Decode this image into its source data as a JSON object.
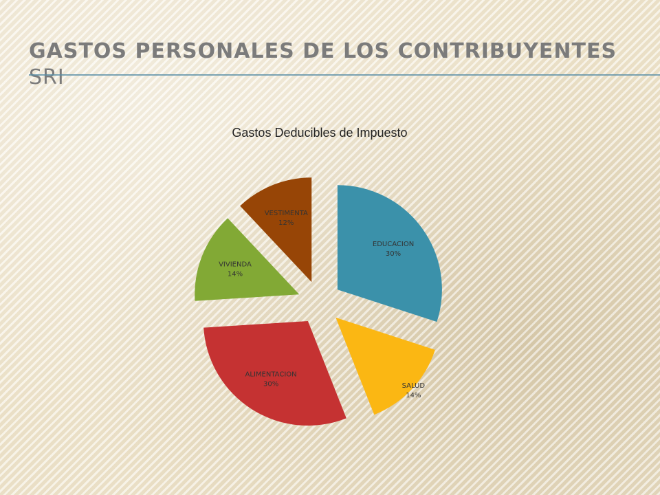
{
  "slide": {
    "title_line1": "GASTOS PERSONALES DE LOS CONTRIBUYENTES",
    "title_line2": "SRI"
  },
  "chart_data": {
    "type": "pie",
    "title": "Gastos Deducibles de Impuesto",
    "exploded": true,
    "slices": [
      {
        "label": "EDUCACION",
        "value": 30,
        "value_label": "30%",
        "color": "#3b91aa"
      },
      {
        "label": "SALUD",
        "value": 14,
        "value_label": "14%",
        "color": "#fbb713"
      },
      {
        "label": "ALIMENTACION",
        "value": 30,
        "value_label": "30%",
        "color": "#c53232"
      },
      {
        "label": "VIVIENDA",
        "value": 14,
        "value_label": "14%",
        "color": "#82a935"
      },
      {
        "label": "VESTIMENTA",
        "value": 12,
        "value_label": "12%",
        "color": "#974506"
      }
    ]
  }
}
